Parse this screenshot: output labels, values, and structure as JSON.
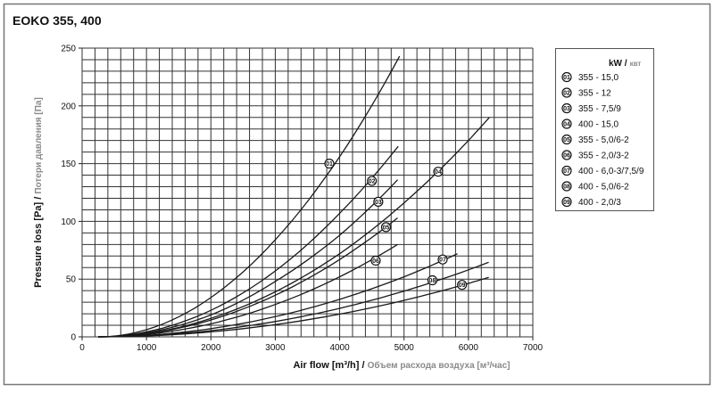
{
  "chart_data": {
    "type": "line",
    "title": "EOKO 355, 400",
    "xlabel": "Air flow [m³/h]",
    "xlabel_ru": "Объем расхода воздуха [м³/час]",
    "ylabel": "Pressure loss [Pa]",
    "ylabel_ru": "Потери давления [Па]",
    "xlim": [
      0,
      7000
    ],
    "ylim": [
      0,
      250
    ],
    "xticks": [
      0,
      1000,
      2000,
      3000,
      4000,
      5000,
      6000,
      7000
    ],
    "yticks": [
      0,
      50,
      100,
      150,
      200,
      250
    ],
    "x_minor_step": 200,
    "y_minor_step": 10,
    "grid": true,
    "legend_position": "right",
    "legend_title": "kW /",
    "legend_title_ru": "квт",
    "colors": {
      "line": "#1a1a1a",
      "grid": "#333333",
      "secondary_text": "#8a8a8a",
      "frame": "#777777"
    },
    "series": [
      {
        "name": "355 - 15,0",
        "marker": "01",
        "label_at": [
          3840,
          150
        ],
        "x": [
          250,
          1000,
          2000,
          3000,
          4000,
          4930
        ],
        "y": [
          0,
          6.2,
          34,
          84,
          156,
          243
        ]
      },
      {
        "name": "355 - 12",
        "marker": "02",
        "label_at": [
          4500,
          135
        ],
        "x": [
          250,
          1000,
          2000,
          3000,
          4000,
          4910
        ],
        "y": [
          0,
          4.3,
          23,
          57,
          107,
          165
        ]
      },
      {
        "name": "355 - 7,5/9",
        "marker": "03",
        "label_at": [
          4600,
          117
        ],
        "x": [
          250,
          1000,
          2000,
          3000,
          4000,
          4900
        ],
        "y": [
          0,
          3.5,
          19,
          48,
          88,
          136
        ]
      },
      {
        "name": "400 - 15,0",
        "marker": "04",
        "label_at": [
          5530,
          143
        ],
        "x": [
          250,
          1000,
          2000,
          3000,
          4000,
          5000,
          6000,
          6325
        ],
        "y": [
          0,
          2.9,
          16,
          39,
          72,
          116,
          170,
          190
        ]
      },
      {
        "name": "355 - 5,0/6-2",
        "marker": "05",
        "label_at": [
          4720,
          95
        ],
        "x": [
          250,
          1000,
          2000,
          3000,
          4000,
          4900
        ],
        "y": [
          0,
          2.7,
          14.6,
          36,
          67,
          103
        ]
      },
      {
        "name": "355 - 2,0/3-2",
        "marker": "06",
        "label_at": [
          4560,
          66
        ],
        "x": [
          250,
          1000,
          2000,
          3000,
          4000,
          4900
        ],
        "y": [
          0,
          2.1,
          11.3,
          28,
          52,
          80
        ]
      },
      {
        "name": "400 - 6,0-3/7,5/9",
        "marker": "07",
        "label_at": [
          5600,
          67
        ],
        "x": [
          250,
          1000,
          2000,
          3000,
          4000,
          5000,
          5830
        ],
        "y": [
          0,
          1.3,
          7.1,
          17.5,
          32.5,
          52,
          72
        ]
      },
      {
        "name": "400 - 5,0/6-2",
        "marker": "08",
        "label_at": [
          5440,
          49
        ],
        "x": [
          250,
          1000,
          2000,
          3000,
          4000,
          5000,
          6000,
          6315
        ],
        "y": [
          0,
          1.0,
          5.4,
          13.3,
          24.7,
          39.6,
          58,
          64.6
        ]
      },
      {
        "name": "400 - 2,0/3",
        "marker": "09",
        "label_at": [
          5900,
          45
        ],
        "x": [
          250,
          1000,
          2000,
          3000,
          4000,
          5000,
          6000,
          6315
        ],
        "y": [
          0,
          0.8,
          4.3,
          10.6,
          19.7,
          31.6,
          46.3,
          51.5
        ]
      }
    ]
  }
}
